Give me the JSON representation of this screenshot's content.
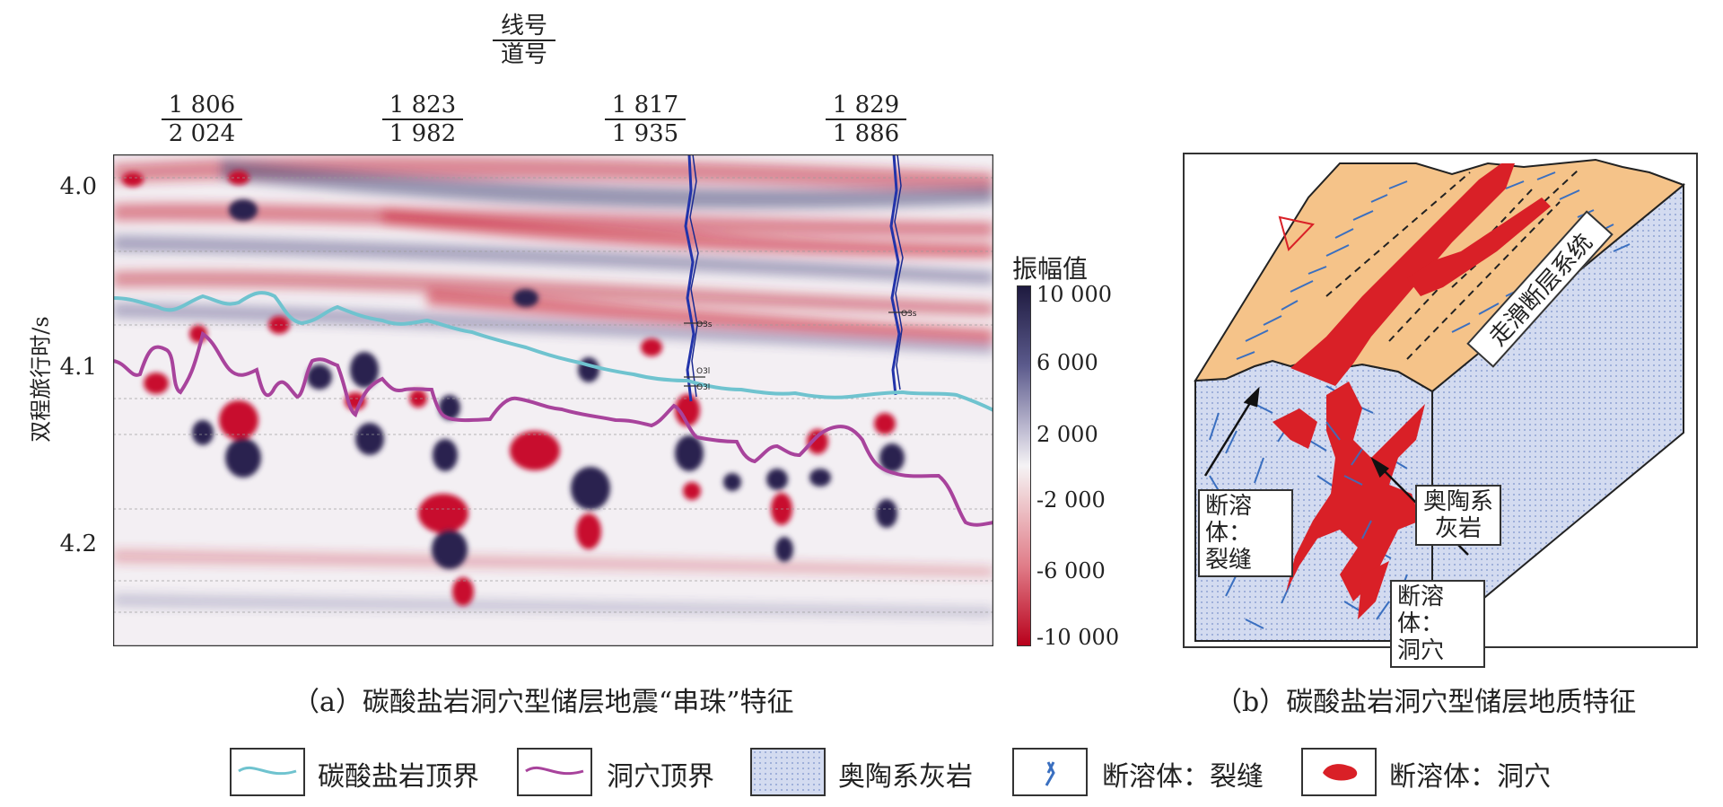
{
  "seismic": {
    "line_header": {
      "numerator": "线号",
      "denominator": "道号"
    },
    "traces": [
      {
        "line": "1 806",
        "trace": "2 024"
      },
      {
        "line": "1 823",
        "trace": "1 982"
      },
      {
        "line": "1 817",
        "trace": "1 935"
      },
      {
        "line": "1 829",
        "trace": "1 886"
      }
    ],
    "y_axis_label": "双程旅行时/s",
    "y_ticks": [
      "4.0",
      "4.1",
      "4.2"
    ],
    "colorbar": {
      "title": "振幅值",
      "ticks": [
        "10 000",
        "6 000",
        "2 000",
        "-2 000",
        "-6 000",
        "-10 000"
      ],
      "color_high": "#2a2350",
      "color_mid": "#f4f2f4",
      "color_low": "#c8102e"
    },
    "well_labels": [
      "O3s",
      "O3l",
      "O3l",
      "O3s"
    ],
    "caption": "（a）碳酸盐岩洞穴型储层地震“串珠”特征"
  },
  "geology": {
    "fault_label": "走滑断层系统",
    "callouts": {
      "fracture": [
        "断溶体：",
        "裂缝"
      ],
      "limestone": [
        "奥陶系",
        "灰岩"
      ],
      "cave": [
        "断溶体：",
        "洞穴"
      ]
    },
    "caption": "（b）碳酸盐岩洞穴型储层地质特征"
  },
  "legend": [
    {
      "label": "碳酸盐岩顶界",
      "color": "#6fc3cf"
    },
    {
      "label": "洞穴顶界",
      "color": "#a8439c"
    },
    {
      "label": "奥陶系灰岩",
      "color": "#c9d3ec"
    },
    {
      "label": "断溶体：裂缝",
      "color": "#3a6fc0"
    },
    {
      "label": "断溶体：洞穴",
      "color": "#d92027"
    }
  ]
}
